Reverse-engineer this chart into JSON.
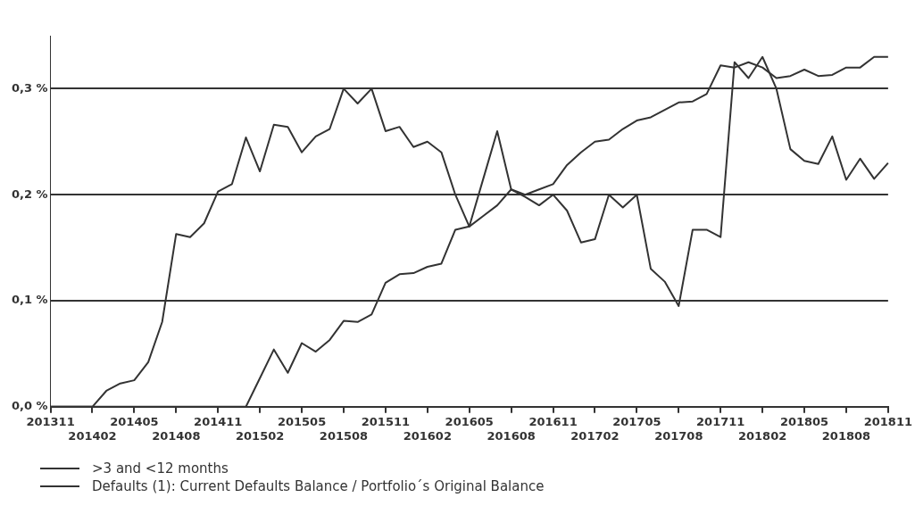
{
  "chart_data": {
    "type": "line",
    "categories": [
      "201311",
      null,
      null,
      "201402",
      null,
      null,
      "201405",
      null,
      null,
      "201408",
      null,
      null,
      "201411",
      null,
      null,
      "201502",
      null,
      null,
      "201505",
      null,
      null,
      "201508",
      null,
      null,
      "201511",
      null,
      null,
      "201602",
      null,
      null,
      "201605",
      null,
      null,
      "201608",
      null,
      null,
      "201611",
      null,
      null,
      "201702",
      null,
      null,
      "201705",
      null,
      null,
      "201708",
      null,
      null,
      "201711",
      null,
      null,
      "201802",
      null,
      null,
      "201805",
      null,
      null,
      "201808",
      null,
      null,
      "201811"
    ],
    "series": [
      {
        "name": ">3 and <12 months",
        "color": "#333333",
        "values": [
          0,
          0,
          0,
          0,
          0.015,
          0.022,
          0.025,
          0.042,
          0.08,
          0.163,
          0.16,
          0.173,
          0.203,
          0.21,
          0.254,
          0.222,
          0.266,
          0.264,
          0.24,
          0.255,
          0.262,
          0.3,
          0.286,
          0.3,
          0.26,
          0.264,
          0.245,
          0.25,
          0.24,
          0.2,
          0.17,
          0.215,
          0.26,
          0.205,
          0.198,
          0.19,
          0.2,
          0.185,
          0.155,
          0.158,
          0.2,
          0.188,
          0.2,
          0.13,
          0.118,
          0.095,
          0.167,
          0.167,
          0.16,
          0.325,
          0.31,
          0.33,
          0.3,
          0.243,
          0.232,
          0.229,
          0.255,
          0.214,
          0.234,
          0.215,
          0.23
        ]
      },
      {
        "name": "Defaults (1): Current Defaults Balance / Portfolio´s Original Balance",
        "color": "#333333",
        "values": [
          0,
          0,
          0,
          0,
          0,
          0,
          0,
          0,
          0,
          0,
          0,
          0,
          0,
          0,
          0,
          0.027,
          0.054,
          0.032,
          0.06,
          0.052,
          0.063,
          0.081,
          0.08,
          0.087,
          0.117,
          0.125,
          0.126,
          0.132,
          0.135,
          0.167,
          0.17,
          0.18,
          0.19,
          0.205,
          0.2,
          0.205,
          0.21,
          0.228,
          0.24,
          0.25,
          0.252,
          0.262,
          0.27,
          0.273,
          0.28,
          0.287,
          0.288,
          0.295,
          0.322,
          0.32,
          0.325,
          0.32,
          0.31,
          0.312,
          0.318,
          0.312,
          0.313,
          0.32,
          0.32,
          0.33,
          0.33
        ]
      }
    ],
    "ylim": [
      0,
      0.35
    ],
    "yticks": [
      {
        "value": 0,
        "label": "0,0 %"
      },
      {
        "value": 0.1,
        "label": "0,1 %"
      },
      {
        "value": 0.2,
        "label": "0,2 %"
      },
      {
        "value": 0.3,
        "label": "0,3 %"
      }
    ],
    "grid": "y",
    "legend": "bottom left",
    "marker": "none",
    "line_style": "solid"
  }
}
